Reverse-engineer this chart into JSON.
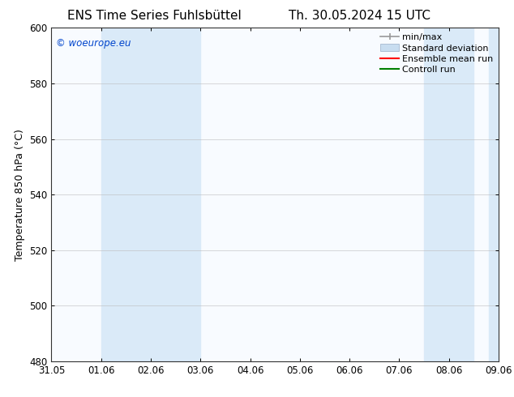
{
  "title_left": "ENS Time Series Fuhlsbüttel",
  "title_right": "Th. 30.05.2024 15 UTC",
  "ylabel": "Temperature 850 hPa (°C)",
  "ylim": [
    480,
    600
  ],
  "yticks": [
    480,
    500,
    520,
    540,
    560,
    580,
    600
  ],
  "x_tick_labels": [
    "31.05",
    "01.06",
    "02.06",
    "03.06",
    "04.06",
    "05.06",
    "06.06",
    "07.06",
    "08.06",
    "09.06"
  ],
  "xlim": [
    0,
    9
  ],
  "bg_color": "#ffffff",
  "plot_bg_color": "#f8fbff",
  "shaded_bands": [
    {
      "x_start": 1,
      "x_end": 3,
      "color": "#daeaf8"
    },
    {
      "x_start": 7.5,
      "x_end": 8.5,
      "color": "#daeaf8"
    },
    {
      "x_start": 8.8,
      "x_end": 9.0,
      "color": "#daeaf8"
    }
  ],
  "legend_entries": [
    {
      "label": "min/max",
      "color": "#999999",
      "lw": 1.2,
      "type": "minmax"
    },
    {
      "label": "Standard deviation",
      "color": "#c8ddf0",
      "lw": 8,
      "type": "band"
    },
    {
      "label": "Ensemble mean run",
      "color": "#ff0000",
      "lw": 1.5,
      "type": "line"
    },
    {
      "label": "Controll run",
      "color": "#008000",
      "lw": 1.5,
      "type": "line"
    }
  ],
  "watermark_text": "© woeurope.eu",
  "watermark_color": "#0044cc",
  "title_fontsize": 11,
  "axis_label_fontsize": 9,
  "tick_fontsize": 8.5,
  "legend_fontsize": 8
}
